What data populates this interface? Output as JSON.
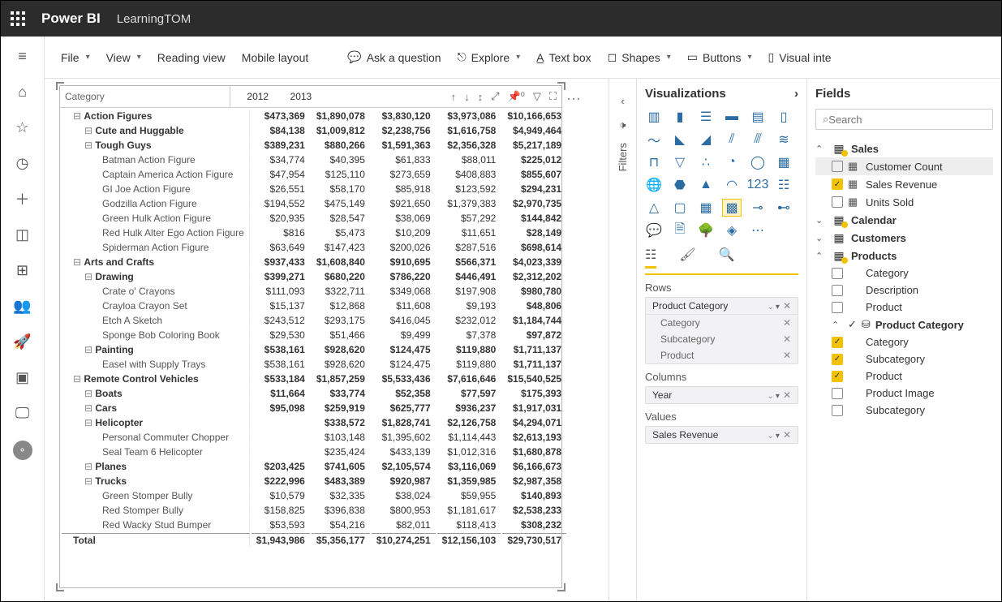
{
  "app": {
    "brand": "Power BI",
    "document": "LearningTOM"
  },
  "toolbar": {
    "file": "File",
    "view": "View",
    "reading": "Reading view",
    "mobile": "Mobile layout",
    "ask": "Ask a question",
    "explore": "Explore",
    "textbox": "Text box",
    "shapes": "Shapes",
    "buttons": "Buttons",
    "visual_inte": "Visual inte"
  },
  "filters_label": "Filters",
  "matrix": {
    "category_header": "Category",
    "years": [
      "2012",
      "2013"
    ],
    "header_icons": [
      "↑↓",
      "↓",
      "↕",
      "⤢",
      "📌 0",
      "▽",
      "⇱"
    ],
    "total_label": "Total",
    "total_values": [
      "$1,943,986",
      "$5,356,177",
      "$10,274,251",
      "$12,156,103",
      "$29,730,517"
    ],
    "rows": [
      {
        "l": 0,
        "label": "Action Figures",
        "v": [
          "$473,369",
          "$1,890,078",
          "$3,830,120",
          "$3,973,086",
          "$10,166,653"
        ]
      },
      {
        "l": 1,
        "label": "Cute and Huggable",
        "v": [
          "$84,138",
          "$1,009,812",
          "$2,238,756",
          "$1,616,758",
          "$4,949,464"
        ]
      },
      {
        "l": 1,
        "label": "Tough Guys",
        "v": [
          "$389,231",
          "$880,266",
          "$1,591,363",
          "$2,356,328",
          "$5,217,189"
        ]
      },
      {
        "l": 2,
        "label": "Batman Action Figure",
        "v": [
          "$34,774",
          "$40,395",
          "$61,833",
          "$88,011",
          "$225,012"
        ]
      },
      {
        "l": 2,
        "label": "Captain America Action Figure",
        "v": [
          "$47,954",
          "$125,110",
          "$273,659",
          "$408,883",
          "$855,607"
        ]
      },
      {
        "l": 2,
        "label": "GI Joe Action Figure",
        "v": [
          "$26,551",
          "$58,170",
          "$85,918",
          "$123,592",
          "$294,231"
        ]
      },
      {
        "l": 2,
        "label": "Godzilla Action Figure",
        "v": [
          "$194,552",
          "$475,149",
          "$921,650",
          "$1,379,383",
          "$2,970,735"
        ]
      },
      {
        "l": 2,
        "label": "Green Hulk Action Figure",
        "v": [
          "$20,935",
          "$28,547",
          "$38,069",
          "$57,292",
          "$144,842"
        ]
      },
      {
        "l": 2,
        "label": "Red Hulk Alter Ego Action Figure",
        "v": [
          "$816",
          "$5,473",
          "$10,209",
          "$11,651",
          "$28,149"
        ]
      },
      {
        "l": 2,
        "label": "Spiderman Action Figure",
        "v": [
          "$63,649",
          "$147,423",
          "$200,026",
          "$287,516",
          "$698,614"
        ]
      },
      {
        "l": 0,
        "label": "Arts and Crafts",
        "v": [
          "$937,433",
          "$1,608,840",
          "$910,695",
          "$566,371",
          "$4,023,339"
        ]
      },
      {
        "l": 1,
        "label": "Drawing",
        "v": [
          "$399,271",
          "$680,220",
          "$786,220",
          "$446,491",
          "$2,312,202"
        ]
      },
      {
        "l": 2,
        "label": "Crate o' Crayons",
        "v": [
          "$111,093",
          "$322,711",
          "$349,068",
          "$197,908",
          "$980,780"
        ]
      },
      {
        "l": 2,
        "label": "Crayloa Crayon Set",
        "v": [
          "$15,137",
          "$12,868",
          "$11,608",
          "$9,193",
          "$48,806"
        ]
      },
      {
        "l": 2,
        "label": "Etch A Sketch",
        "v": [
          "$243,512",
          "$293,175",
          "$416,045",
          "$232,012",
          "$1,184,744"
        ]
      },
      {
        "l": 2,
        "label": "Sponge Bob Coloring Book",
        "v": [
          "$29,530",
          "$51,466",
          "$9,499",
          "$7,378",
          "$97,872"
        ]
      },
      {
        "l": 1,
        "label": "Painting",
        "v": [
          "$538,161",
          "$928,620",
          "$124,475",
          "$119,880",
          "$1,711,137"
        ]
      },
      {
        "l": 2,
        "label": "Easel with Supply Trays",
        "v": [
          "$538,161",
          "$928,620",
          "$124,475",
          "$119,880",
          "$1,711,137"
        ]
      },
      {
        "l": 0,
        "label": "Remote Control Vehicles",
        "v": [
          "$533,184",
          "$1,857,259",
          "$5,533,436",
          "$7,616,646",
          "$15,540,525"
        ]
      },
      {
        "l": 1,
        "label": "Boats",
        "v": [
          "$11,664",
          "$33,774",
          "$52,358",
          "$77,597",
          "$175,393"
        ]
      },
      {
        "l": 1,
        "label": "Cars",
        "v": [
          "$95,098",
          "$259,919",
          "$625,777",
          "$936,237",
          "$1,917,031"
        ]
      },
      {
        "l": 1,
        "label": "Helicopter",
        "v": [
          "",
          "$338,572",
          "$1,828,741",
          "$2,126,758",
          "$4,294,071"
        ]
      },
      {
        "l": 2,
        "label": "Personal Commuter Chopper",
        "v": [
          "",
          "$103,148",
          "$1,395,602",
          "$1,114,443",
          "$2,613,193"
        ]
      },
      {
        "l": 2,
        "label": "Seal Team 6 Helicopter",
        "v": [
          "",
          "$235,424",
          "$433,139",
          "$1,012,316",
          "$1,680,878"
        ]
      },
      {
        "l": 1,
        "label": "Planes",
        "v": [
          "$203,425",
          "$741,605",
          "$2,105,574",
          "$3,116,069",
          "$6,166,673"
        ]
      },
      {
        "l": 1,
        "label": "Trucks",
        "v": [
          "$222,996",
          "$483,389",
          "$920,987",
          "$1,359,985",
          "$2,987,358"
        ]
      },
      {
        "l": 2,
        "label": "Green Stomper Bully",
        "v": [
          "$10,579",
          "$32,335",
          "$38,024",
          "$59,955",
          "$140,893"
        ]
      },
      {
        "l": 2,
        "label": "Red Stomper Bully",
        "v": [
          "$158,825",
          "$396,838",
          "$800,953",
          "$1,181,617",
          "$2,538,233"
        ]
      },
      {
        "l": 2,
        "label": "Red Wacky Stud Bumper",
        "v": [
          "$53,593",
          "$54,216",
          "$82,011",
          "$118,413",
          "$308,232"
        ]
      }
    ]
  },
  "viz": {
    "title": "Visualizations",
    "rows_label": "Rows",
    "rows_group": "Product Category",
    "rows_items": [
      "Category",
      "Subcategory",
      "Product"
    ],
    "columns_label": "Columns",
    "columns_item": "Year",
    "values_label": "Values",
    "values_item": "Sales Revenue",
    "ellipsis": "⋯"
  },
  "fields": {
    "title": "Fields",
    "search_placeholder": "Search",
    "tables": {
      "sales": {
        "name": "Sales",
        "expanded": true,
        "fields": [
          {
            "name": "Customer Count",
            "checked": false,
            "icon": "▦",
            "sel": true
          },
          {
            "name": "Sales Revenue",
            "checked": true,
            "icon": "▦"
          },
          {
            "name": "Units Sold",
            "checked": false,
            "icon": "▦"
          }
        ]
      },
      "calendar": {
        "name": "Calendar",
        "expanded": false
      },
      "customers": {
        "name": "Customers",
        "expanded": false
      },
      "products": {
        "name": "Products",
        "expanded": true,
        "fields": [
          {
            "name": "Category",
            "checked": false,
            "icon": ""
          },
          {
            "name": "Description",
            "checked": false,
            "icon": ""
          },
          {
            "name": "Product",
            "checked": false,
            "icon": ""
          }
        ],
        "hierarchy": {
          "name": "Product Category",
          "checked": true,
          "expanded": true,
          "levels": [
            {
              "name": "Category",
              "checked": true
            },
            {
              "name": "Subcategory",
              "checked": true
            },
            {
              "name": "Product",
              "checked": true
            }
          ]
        },
        "more_fields": [
          {
            "name": "Product Image",
            "checked": false,
            "icon": ""
          },
          {
            "name": "Subcategory",
            "checked": false,
            "icon": ""
          }
        ]
      }
    }
  }
}
